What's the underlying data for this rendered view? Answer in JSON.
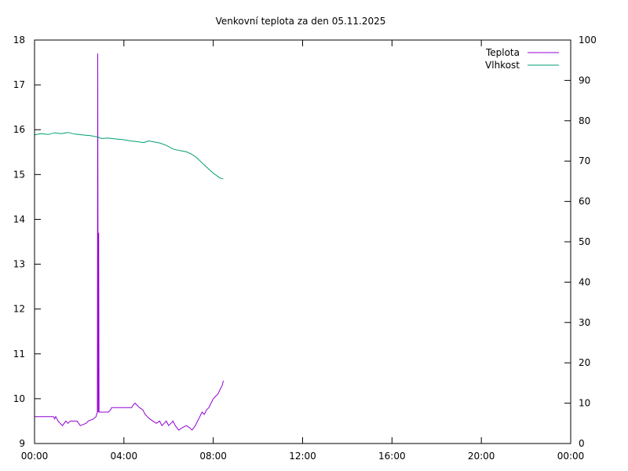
{
  "chart_data": {
    "type": "line",
    "title": "Venkovní teplota za den 05.11.2025",
    "x_axis": {
      "ticks": [
        "00:00",
        "04:00",
        "08:00",
        "12:00",
        "16:00",
        "20:00",
        "00:00"
      ],
      "range_hours": [
        0,
        24
      ]
    },
    "y_left": {
      "range": [
        9,
        18
      ],
      "ticks": [
        "9",
        "10",
        "11",
        "12",
        "13",
        "14",
        "15",
        "16",
        "17",
        "18"
      ]
    },
    "y_right": {
      "range": [
        0,
        100
      ],
      "ticks": [
        "0",
        "10",
        "20",
        "30",
        "40",
        "50",
        "60",
        "70",
        "80",
        "90",
        "100"
      ]
    },
    "legend_position": "top-right",
    "grid": false,
    "series": [
      {
        "name": "Teplota",
        "color": "#9400d3",
        "axis": "left",
        "points": [
          [
            0.0,
            9.6
          ],
          [
            0.85,
            9.6
          ],
          [
            0.9,
            9.55
          ],
          [
            0.95,
            9.6
          ],
          [
            1.05,
            9.5
          ],
          [
            1.15,
            9.45
          ],
          [
            1.25,
            9.4
          ],
          [
            1.4,
            9.5
          ],
          [
            1.5,
            9.45
          ],
          [
            1.6,
            9.5
          ],
          [
            1.9,
            9.5
          ],
          [
            2.05,
            9.4
          ],
          [
            2.3,
            9.45
          ],
          [
            2.4,
            9.5
          ],
          [
            2.65,
            9.55
          ],
          [
            2.75,
            9.6
          ],
          [
            2.81,
            9.7
          ],
          [
            2.83,
            17.7
          ],
          [
            2.85,
            9.7
          ],
          [
            2.87,
            13.7
          ],
          [
            2.89,
            9.7
          ],
          [
            3.3,
            9.7
          ],
          [
            3.4,
            9.75
          ],
          [
            3.45,
            9.8
          ],
          [
            4.35,
            9.8
          ],
          [
            4.4,
            9.85
          ],
          [
            4.5,
            9.9
          ],
          [
            4.6,
            9.85
          ],
          [
            4.7,
            9.8
          ],
          [
            4.85,
            9.75
          ],
          [
            4.95,
            9.65
          ],
          [
            5.05,
            9.6
          ],
          [
            5.15,
            9.55
          ],
          [
            5.3,
            9.5
          ],
          [
            5.45,
            9.45
          ],
          [
            5.6,
            9.5
          ],
          [
            5.7,
            9.4
          ],
          [
            5.8,
            9.45
          ],
          [
            5.9,
            9.5
          ],
          [
            6.0,
            9.4
          ],
          [
            6.1,
            9.45
          ],
          [
            6.2,
            9.5
          ],
          [
            6.3,
            9.4
          ],
          [
            6.45,
            9.3
          ],
          [
            6.6,
            9.35
          ],
          [
            6.8,
            9.4
          ],
          [
            6.95,
            9.35
          ],
          [
            7.05,
            9.3
          ],
          [
            7.2,
            9.4
          ],
          [
            7.3,
            9.5
          ],
          [
            7.4,
            9.6
          ],
          [
            7.5,
            9.7
          ],
          [
            7.6,
            9.65
          ],
          [
            7.7,
            9.75
          ],
          [
            7.8,
            9.8
          ],
          [
            7.9,
            9.9
          ],
          [
            8.0,
            10.0
          ],
          [
            8.1,
            10.05
          ],
          [
            8.2,
            10.1
          ],
          [
            8.3,
            10.2
          ],
          [
            8.4,
            10.3
          ],
          [
            8.45,
            10.4
          ]
        ]
      },
      {
        "name": "Vlhkost",
        "color": "#009e73",
        "axis": "right",
        "points": [
          [
            0.0,
            76.5
          ],
          [
            0.3,
            76.8
          ],
          [
            0.6,
            76.6
          ],
          [
            0.9,
            77.0
          ],
          [
            1.2,
            76.8
          ],
          [
            1.5,
            77.1
          ],
          [
            1.8,
            76.7
          ],
          [
            2.1,
            76.5
          ],
          [
            2.5,
            76.3
          ],
          [
            2.8,
            76.0
          ],
          [
            3.0,
            75.6
          ],
          [
            3.3,
            75.7
          ],
          [
            3.6,
            75.5
          ],
          [
            4.0,
            75.3
          ],
          [
            4.3,
            75.0
          ],
          [
            4.6,
            74.8
          ],
          [
            4.9,
            74.6
          ],
          [
            5.1,
            75.0
          ],
          [
            5.3,
            74.8
          ],
          [
            5.6,
            74.5
          ],
          [
            5.9,
            73.9
          ],
          [
            6.2,
            73.0
          ],
          [
            6.5,
            72.6
          ],
          [
            6.8,
            72.3
          ],
          [
            7.0,
            71.8
          ],
          [
            7.2,
            71.1
          ],
          [
            7.4,
            70.1
          ],
          [
            7.6,
            69.0
          ],
          [
            7.8,
            68.0
          ],
          [
            8.0,
            67.0
          ],
          [
            8.2,
            66.2
          ],
          [
            8.3,
            65.8
          ],
          [
            8.45,
            65.6
          ]
        ]
      }
    ]
  }
}
